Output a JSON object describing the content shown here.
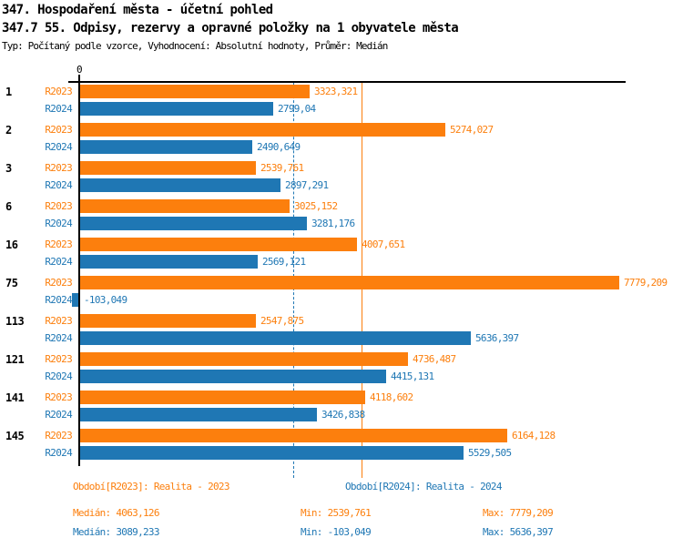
{
  "header": {
    "title": "347. Hospodaření města - účetní pohled",
    "subtitle": "347.7 55. Odpisy, rezervy a opravné položky na 1 obyvatele města",
    "meta": "Typ: Počítaný podle vzorce, Vyhodnocení: Absolutní hodnoty, Průměr: Medián"
  },
  "chart_data": {
    "type": "bar",
    "orientation": "horizontal",
    "title": "347.7 55. Odpisy, rezervy a opravné položky na 1 obyvatele města",
    "grid": "off",
    "axis": {
      "zero_label": "0",
      "value_min": -103.049,
      "value_max": 7779.209
    },
    "categories": [
      "1",
      "2",
      "3",
      "6",
      "16",
      "75",
      "113",
      "121",
      "141",
      "145"
    ],
    "series": [
      {
        "name": "R2023",
        "color": "#FC7F0D",
        "values": [
          3323.321,
          5274.027,
          2539.761,
          3025.152,
          4007.651,
          7779.209,
          2547.875,
          4736.487,
          4118.602,
          6164.128
        ],
        "labels": [
          "3323,321",
          "5274,027",
          "2539,761",
          "3025,152",
          "4007,651",
          "7779,209",
          "2547,875",
          "4736,487",
          "4118,602",
          "6164,128"
        ]
      },
      {
        "name": "R2024",
        "color": "#1F77B4",
        "values": [
          2799.04,
          2490.649,
          2897.291,
          3281.176,
          2569.121,
          -103.049,
          5636.397,
          4415.131,
          3426.838,
          5529.505
        ],
        "labels": [
          "2799,04",
          "2490,649",
          "2897,291",
          "3281,176",
          "2569,121",
          "-103,049",
          "5636,397",
          "4415,131",
          "3426,838",
          "5529,505"
        ]
      }
    ],
    "reference_lines": [
      {
        "name": "median-r2024",
        "value": 3089.233,
        "color": "#1F77B4",
        "style": "dashed"
      },
      {
        "name": "median-r2023",
        "value": 4063.126,
        "color": "#FC7F0D",
        "style": "solid"
      }
    ]
  },
  "legend": {
    "r2023": {
      "period": "Období[R2023]: Realita - 2023",
      "median": "Medián: 4063,126",
      "min": "Min: 2539,761",
      "max": "Max: 7779,209",
      "color": "#FC7F0D"
    },
    "r2024": {
      "period": "Období[R2024]: Realita - 2024",
      "median": "Medián: 3089,233",
      "min": "Min: -103,049",
      "max": "Max: 5636,397",
      "color": "#1F77B4"
    }
  }
}
